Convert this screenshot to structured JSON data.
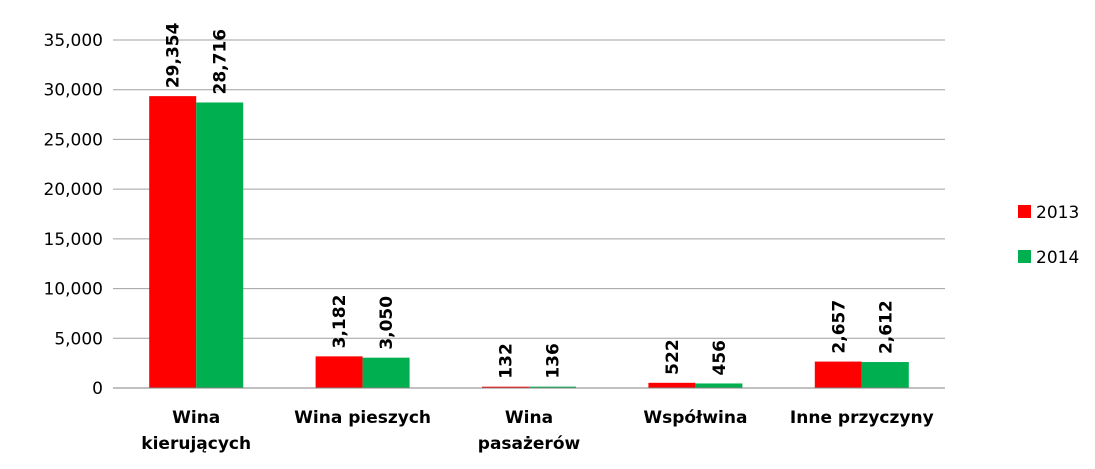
{
  "chart_data": {
    "type": "bar",
    "categories": [
      "Wina\nkierujących",
      "Wina pieszych",
      "Wina\npasażerów",
      "Współwina",
      "Inne przyczyny"
    ],
    "series": [
      {
        "name": "2013",
        "color": "#ff0000",
        "values": [
          29354,
          3182,
          132,
          522,
          2657
        ],
        "value_labels": [
          "29,354",
          "3,182",
          "132",
          "522",
          "2,657"
        ]
      },
      {
        "name": "2014",
        "color": "#00b050",
        "values": [
          28716,
          3050,
          136,
          456,
          2612
        ],
        "value_labels": [
          "28,716",
          "3,050",
          "136",
          "456",
          "2,612"
        ]
      }
    ],
    "ylim": [
      0,
      35000
    ],
    "yticks": [
      0,
      {
        "value": 5000,
        "label": "5,000"
      },
      {
        "value": 10000,
        "label": "10,000"
      },
      {
        "value": 15000,
        "label": "15,000"
      },
      {
        "value": 20000,
        "label": "20,000"
      },
      {
        "value": 25000,
        "label": "25,000"
      },
      {
        "value": 30000,
        "label": "30,000"
      },
      {
        "value": 35000,
        "label": "35,000"
      }
    ],
    "grid": true,
    "legend": "right"
  }
}
